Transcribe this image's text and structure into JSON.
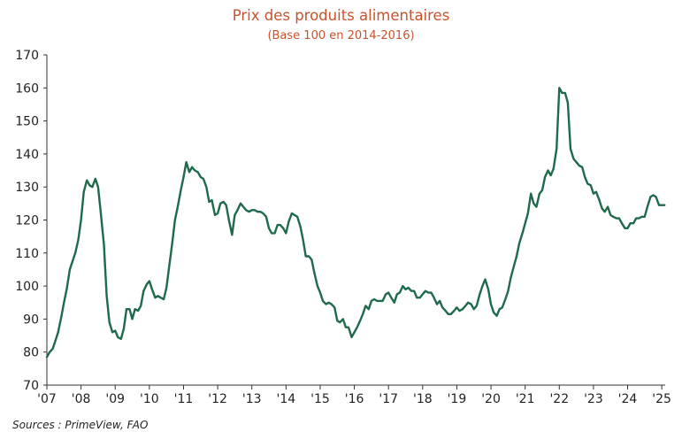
{
  "chart_data": {
    "type": "line",
    "title": "Prix des produits alimentaires",
    "subtitle": "(Base 100 en 2014-2016)",
    "source": "Sources : PrimeView, FAO",
    "xlabel": "",
    "ylabel": "",
    "ylim": [
      70,
      170
    ],
    "yticks": [
      70,
      80,
      90,
      100,
      110,
      120,
      130,
      140,
      150,
      160,
      170
    ],
    "xlim": [
      2007.0,
      2025.1
    ],
    "xticks": [
      {
        "value": 2007,
        "label": "'07"
      },
      {
        "value": 2008,
        "label": "'08"
      },
      {
        "value": 2009,
        "label": "'09"
      },
      {
        "value": 2010,
        "label": "'10"
      },
      {
        "value": 2011,
        "label": "'11"
      },
      {
        "value": 2012,
        "label": "'12"
      },
      {
        "value": 2013,
        "label": "'13"
      },
      {
        "value": 2014,
        "label": "'14"
      },
      {
        "value": 2015,
        "label": "'15"
      },
      {
        "value": 2016,
        "label": "'16"
      },
      {
        "value": 2017,
        "label": "'17"
      },
      {
        "value": 2018,
        "label": "'18"
      },
      {
        "value": 2019,
        "label": "'19"
      },
      {
        "value": 2020,
        "label": "'20"
      },
      {
        "value": 2021,
        "label": "'21"
      },
      {
        "value": 2022,
        "label": "'22"
      },
      {
        "value": 2023,
        "label": "'23"
      },
      {
        "value": 2024,
        "label": "'24"
      },
      {
        "value": 2025,
        "label": "'25"
      }
    ],
    "grid": false,
    "colors": {
      "line": "#1f6a4a",
      "title": "#c9532b",
      "axis": "#333333"
    },
    "series": [
      {
        "x": [
          2007.0,
          2007.08,
          2007.17,
          2007.25,
          2007.33,
          2007.42,
          2007.5,
          2007.58,
          2007.67,
          2007.75,
          2007.83,
          2007.92,
          2008.0,
          2008.08,
          2008.17,
          2008.25,
          2008.33,
          2008.42,
          2008.5,
          2008.58,
          2008.67,
          2008.75,
          2008.83,
          2008.92,
          2009.0,
          2009.08,
          2009.17,
          2009.25,
          2009.33,
          2009.42,
          2009.5,
          2009.58,
          2009.67,
          2009.75,
          2009.83,
          2009.92,
          2010.0,
          2010.08,
          2010.17,
          2010.25,
          2010.33,
          2010.42,
          2010.5,
          2010.58,
          2010.67,
          2010.75,
          2010.83,
          2010.92,
          2011.0,
          2011.08,
          2011.17,
          2011.25,
          2011.33,
          2011.42,
          2011.5,
          2011.58,
          2011.67,
          2011.75,
          2011.83,
          2011.92,
          2012.0,
          2012.08,
          2012.17,
          2012.25,
          2012.33,
          2012.42,
          2012.5,
          2012.58,
          2012.67,
          2012.75,
          2012.83,
          2012.92,
          2013.0,
          2013.08,
          2013.17,
          2013.25,
          2013.33,
          2013.42,
          2013.5,
          2013.58,
          2013.67,
          2013.75,
          2013.83,
          2013.92,
          2014.0,
          2014.08,
          2014.17,
          2014.25,
          2014.33,
          2014.42,
          2014.5,
          2014.58,
          2014.67,
          2014.75,
          2014.83,
          2014.92,
          2015.0,
          2015.08,
          2015.17,
          2015.25,
          2015.33,
          2015.42,
          2015.5,
          2015.58,
          2015.67,
          2015.75,
          2015.83,
          2015.92,
          2016.0,
          2016.08,
          2016.17,
          2016.25,
          2016.33,
          2016.42,
          2016.5,
          2016.58,
          2016.67,
          2016.75,
          2016.83,
          2016.92,
          2017.0,
          2017.08,
          2017.17,
          2017.25,
          2017.33,
          2017.42,
          2017.5,
          2017.58,
          2017.67,
          2017.75,
          2017.83,
          2017.92,
          2018.0,
          2018.08,
          2018.17,
          2018.25,
          2018.33,
          2018.42,
          2018.5,
          2018.58,
          2018.67,
          2018.75,
          2018.83,
          2018.92,
          2019.0,
          2019.08,
          2019.17,
          2019.25,
          2019.33,
          2019.42,
          2019.5,
          2019.58,
          2019.67,
          2019.75,
          2019.83,
          2019.92,
          2020.0,
          2020.08,
          2020.17,
          2020.25,
          2020.33,
          2020.42,
          2020.5,
          2020.58,
          2020.67,
          2020.75,
          2020.83,
          2020.92,
          2021.0,
          2021.08,
          2021.17,
          2021.25,
          2021.33,
          2021.42,
          2021.5,
          2021.58,
          2021.67,
          2021.75,
          2021.83,
          2021.92,
          2022.0,
          2022.08,
          2022.17,
          2022.25,
          2022.33,
          2022.42,
          2022.5,
          2022.58,
          2022.67,
          2022.75,
          2022.83,
          2022.92,
          2023.0,
          2023.08,
          2023.17,
          2023.25,
          2023.33,
          2023.42,
          2023.5,
          2023.58,
          2023.67,
          2023.75,
          2023.83,
          2023.92,
          2024.0,
          2024.08,
          2024.17,
          2024.25,
          2024.33,
          2024.42,
          2024.5,
          2024.58,
          2024.67,
          2024.75,
          2024.83,
          2024.92,
          2025.0,
          2025.08
        ],
        "values": [
          78.5,
          80,
          81,
          83.5,
          86,
          90.5,
          95,
          99,
          105,
          107.5,
          110,
          114,
          120,
          128.5,
          132,
          130.5,
          130,
          132.5,
          130,
          122,
          112.5,
          97,
          89,
          86,
          86.5,
          84.5,
          84,
          87,
          93,
          93,
          90,
          93,
          92.5,
          94,
          98.5,
          100.5,
          101.5,
          99,
          96.5,
          97,
          96.5,
          96,
          99.5,
          106,
          113,
          120,
          124,
          129,
          133,
          137.5,
          134.5,
          136,
          135,
          134.5,
          133,
          132.5,
          130,
          125.5,
          126,
          121.5,
          122,
          125,
          125.5,
          124.5,
          120,
          115.5,
          121.5,
          123,
          125,
          124,
          123,
          122.5,
          123,
          123,
          122.5,
          122.5,
          122,
          121,
          117.5,
          116,
          116,
          118.5,
          118.5,
          117.5,
          116,
          119.5,
          122,
          121.5,
          121,
          118,
          114,
          109,
          109,
          108,
          104,
          100,
          98,
          95.5,
          94.5,
          95,
          94.5,
          93.5,
          89.5,
          89,
          90,
          87.5,
          87.5,
          84.5,
          86,
          87.5,
          89.5,
          91.5,
          94,
          93,
          95.5,
          96,
          95.5,
          95.5,
          95.5,
          97.5,
          98,
          96.5,
          95,
          97.5,
          98,
          100,
          99,
          99.5,
          98.5,
          98.5,
          96.5,
          96.5,
          97.5,
          98.5,
          98,
          98,
          96.5,
          94.5,
          95.5,
          93.5,
          92.5,
          91.5,
          91.5,
          92.5,
          93.5,
          92.5,
          93,
          94,
          95,
          94.5,
          93,
          94,
          97.5,
          100,
          102,
          99,
          94.5,
          92,
          91,
          93,
          93.5,
          96,
          98.5,
          102.5,
          106,
          109,
          113,
          116,
          119,
          122,
          128,
          125,
          124,
          128,
          129,
          133,
          135,
          133.5,
          135.5,
          141.5,
          160,
          158.5,
          158.5,
          155.5,
          141.5,
          138.5,
          137.5,
          136.5,
          136,
          133,
          131,
          130.5,
          128,
          128.5,
          126,
          123.5,
          122.5,
          124,
          121.5,
          121,
          120.5,
          120.5,
          119,
          117.5,
          117.5,
          119,
          119,
          120.5,
          120.5,
          121,
          121,
          124,
          127,
          127.5,
          127,
          124.5,
          124.5,
          124.5
        ]
      }
    ]
  }
}
